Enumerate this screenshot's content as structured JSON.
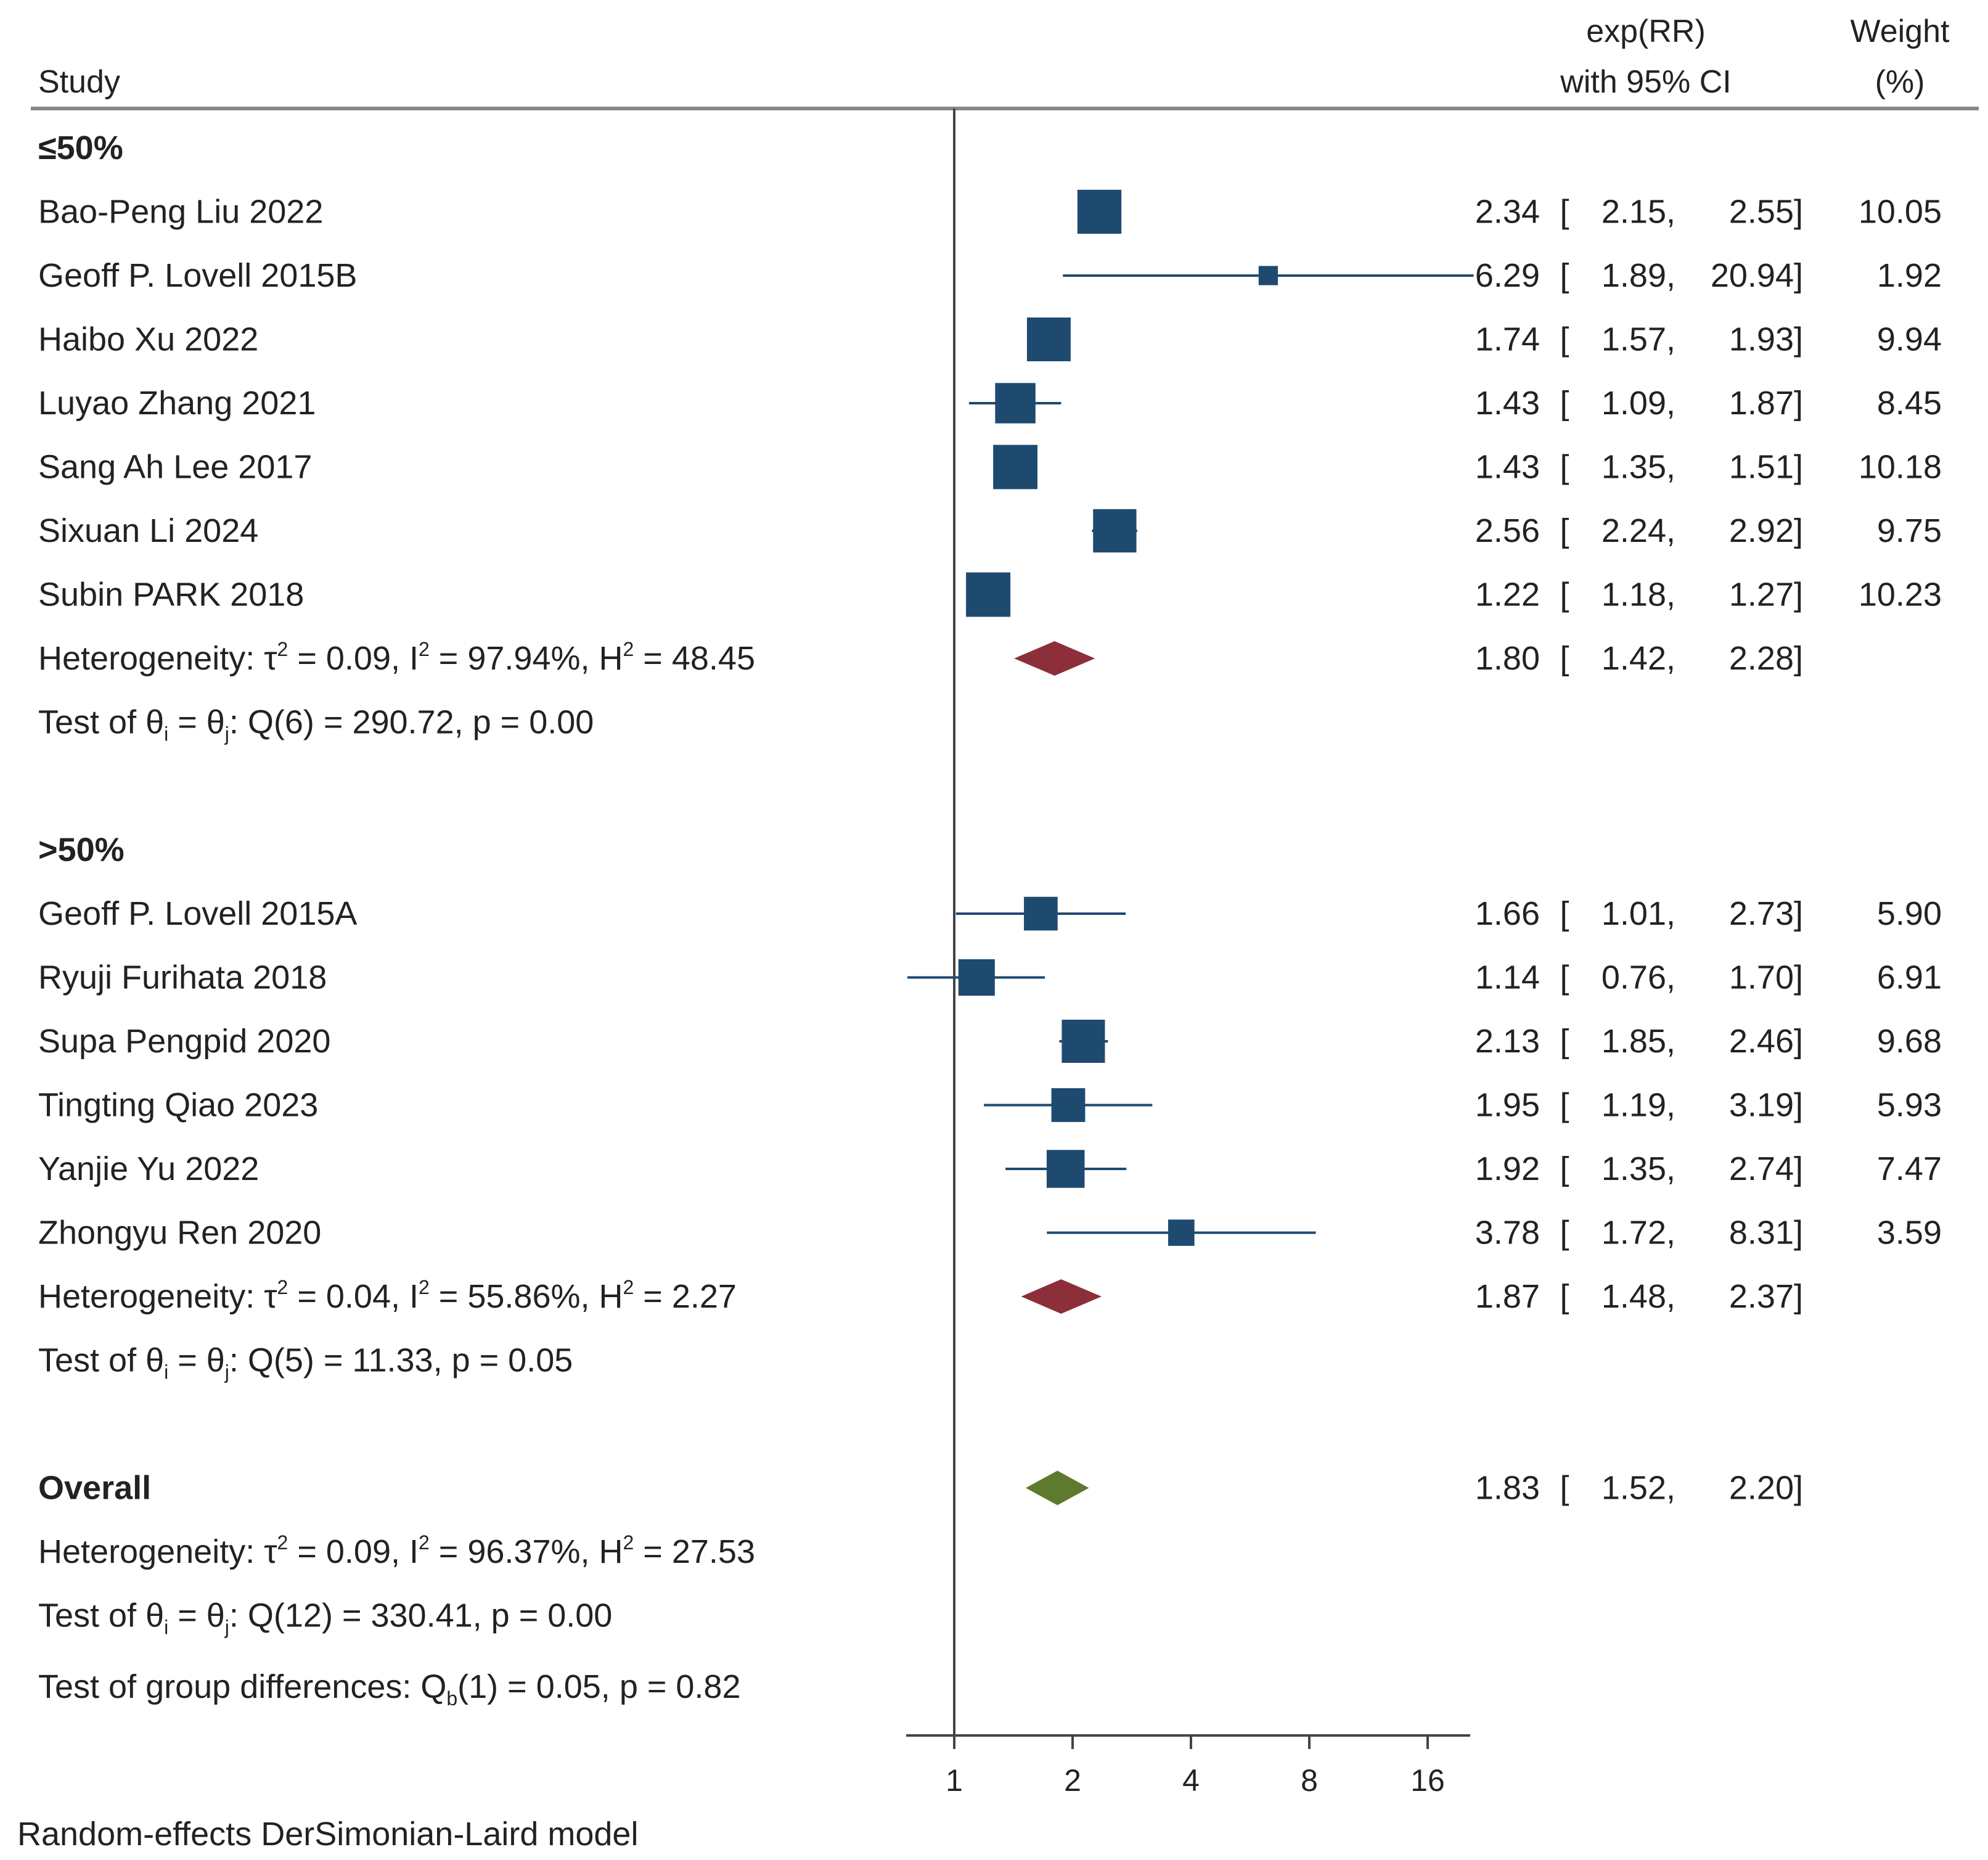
{
  "chart_data": {
    "type": "forest",
    "header": {
      "study": "Study",
      "effect_line1": "exp(RR)",
      "effect_line2": "with 95% CI",
      "weight_line1": "Weight",
      "weight_line2": "(%)"
    },
    "scale": "log2",
    "x_axis": {
      "ticks": [
        1,
        2,
        4,
        8,
        16
      ],
      "tick_labels": [
        "1",
        "2",
        "4",
        "8",
        "16"
      ],
      "range": [
        0.76,
        20.94
      ]
    },
    "groups": [
      {
        "label": "≤50%",
        "studies": [
          {
            "name": "Bao-Peng Liu 2022",
            "est": 2.34,
            "lo": 2.15,
            "hi": 2.55,
            "est_text": "2.34",
            "lo_text": "2.15",
            "hi_text": "2.55",
            "weight": "10.05",
            "weight_val": 10.05
          },
          {
            "name": "Geoff P. Lovell 2015B",
            "est": 6.29,
            "lo": 1.89,
            "hi": 20.94,
            "est_text": "6.29",
            "lo_text": "1.89",
            "hi_text": "20.94",
            "weight": "1.92",
            "weight_val": 1.92
          },
          {
            "name": "Haibo Xu 2022",
            "est": 1.74,
            "lo": 1.57,
            "hi": 1.93,
            "est_text": "1.74",
            "lo_text": "1.57",
            "hi_text": "1.93",
            "weight": "9.94",
            "weight_val": 9.94
          },
          {
            "name": "Luyao Zhang 2021",
            "est": 1.43,
            "lo": 1.09,
            "hi": 1.87,
            "est_text": "1.43",
            "lo_text": "1.09",
            "hi_text": "1.87",
            "weight": "8.45",
            "weight_val": 8.45
          },
          {
            "name": "Sang Ah Lee 2017",
            "est": 1.43,
            "lo": 1.35,
            "hi": 1.51,
            "est_text": "1.43",
            "lo_text": "1.35",
            "hi_text": "1.51",
            "weight": "10.18",
            "weight_val": 10.18
          },
          {
            "name": "Sixuan Li 2024",
            "est": 2.56,
            "lo": 2.24,
            "hi": 2.92,
            "est_text": "2.56",
            "lo_text": "2.24",
            "hi_text": "2.92",
            "weight": "9.75",
            "weight_val": 9.75
          },
          {
            "name": "Subin PARK 2018",
            "est": 1.22,
            "lo": 1.18,
            "hi": 1.27,
            "est_text": "1.22",
            "lo_text": "1.18",
            "hi_text": "1.27",
            "weight": "10.23",
            "weight_val": 10.23
          }
        ],
        "pooled": {
          "est": 1.8,
          "lo": 1.42,
          "hi": 2.28,
          "est_text": "1.80",
          "lo_text": "1.42",
          "hi_text": "2.28"
        },
        "heterogeneity": {
          "tau2": "0.09",
          "i2": "97.94%",
          "h2": "48.45"
        },
        "test": {
          "df": "6",
          "q": "290.72",
          "p": "0.00"
        }
      },
      {
        "label": ">50%",
        "studies": [
          {
            "name": "Geoff P. Lovell 2015A",
            "est": 1.66,
            "lo": 1.01,
            "hi": 2.73,
            "est_text": "1.66",
            "lo_text": "1.01",
            "hi_text": "2.73",
            "weight": "5.90",
            "weight_val": 5.9
          },
          {
            "name": "Ryuji Furihata 2018",
            "est": 1.14,
            "lo": 0.76,
            "hi": 1.7,
            "est_text": "1.14",
            "lo_text": "0.76",
            "hi_text": "1.70",
            "weight": "6.91",
            "weight_val": 6.91
          },
          {
            "name": "Supa Pengpid 2020",
            "est": 2.13,
            "lo": 1.85,
            "hi": 2.46,
            "est_text": "2.13",
            "lo_text": "1.85",
            "hi_text": "2.46",
            "weight": "9.68",
            "weight_val": 9.68
          },
          {
            "name": "Tingting Qiao 2023",
            "est": 1.95,
            "lo": 1.19,
            "hi": 3.19,
            "est_text": "1.95",
            "lo_text": "1.19",
            "hi_text": "3.19",
            "weight": "5.93",
            "weight_val": 5.93
          },
          {
            "name": "Yanjie Yu 2022",
            "est": 1.92,
            "lo": 1.35,
            "hi": 2.74,
            "est_text": "1.92",
            "lo_text": "1.35",
            "hi_text": "2.74",
            "weight": "7.47",
            "weight_val": 7.47
          },
          {
            "name": "Zhongyu Ren 2020",
            "est": 3.78,
            "lo": 1.72,
            "hi": 8.31,
            "est_text": "3.78",
            "lo_text": "1.72",
            "hi_text": "8.31",
            "weight": "3.59",
            "weight_val": 3.59
          }
        ],
        "pooled": {
          "est": 1.87,
          "lo": 1.48,
          "hi": 2.37,
          "est_text": "1.87",
          "lo_text": "1.48",
          "hi_text": "2.37"
        },
        "heterogeneity": {
          "tau2": "0.04",
          "i2": "55.86%",
          "h2": "2.27"
        },
        "test": {
          "df": "5",
          "q": "11.33",
          "p": "0.05"
        }
      }
    ],
    "overall": {
      "label": "Overall",
      "est": 1.83,
      "lo": 1.52,
      "hi": 2.2,
      "est_text": "1.83",
      "lo_text": "1.52",
      "hi_text": "2.20",
      "heterogeneity": {
        "tau2": "0.09",
        "i2": "96.37%",
        "h2": "27.53"
      },
      "test": {
        "df": "12",
        "q": "330.41",
        "p": "0.00"
      }
    },
    "group_difference": {
      "df": "1",
      "q": "0.05",
      "p": "0.82"
    },
    "footnote": "Random-effects DerSimonian-Laird model"
  },
  "colors": {
    "study_marker": "#1f4a70",
    "subgroup_diamond": "#8c2f3a",
    "overall_diamond": "#5e7a2c",
    "axis": "#444444",
    "rule": "#888888",
    "text": "#222222"
  }
}
